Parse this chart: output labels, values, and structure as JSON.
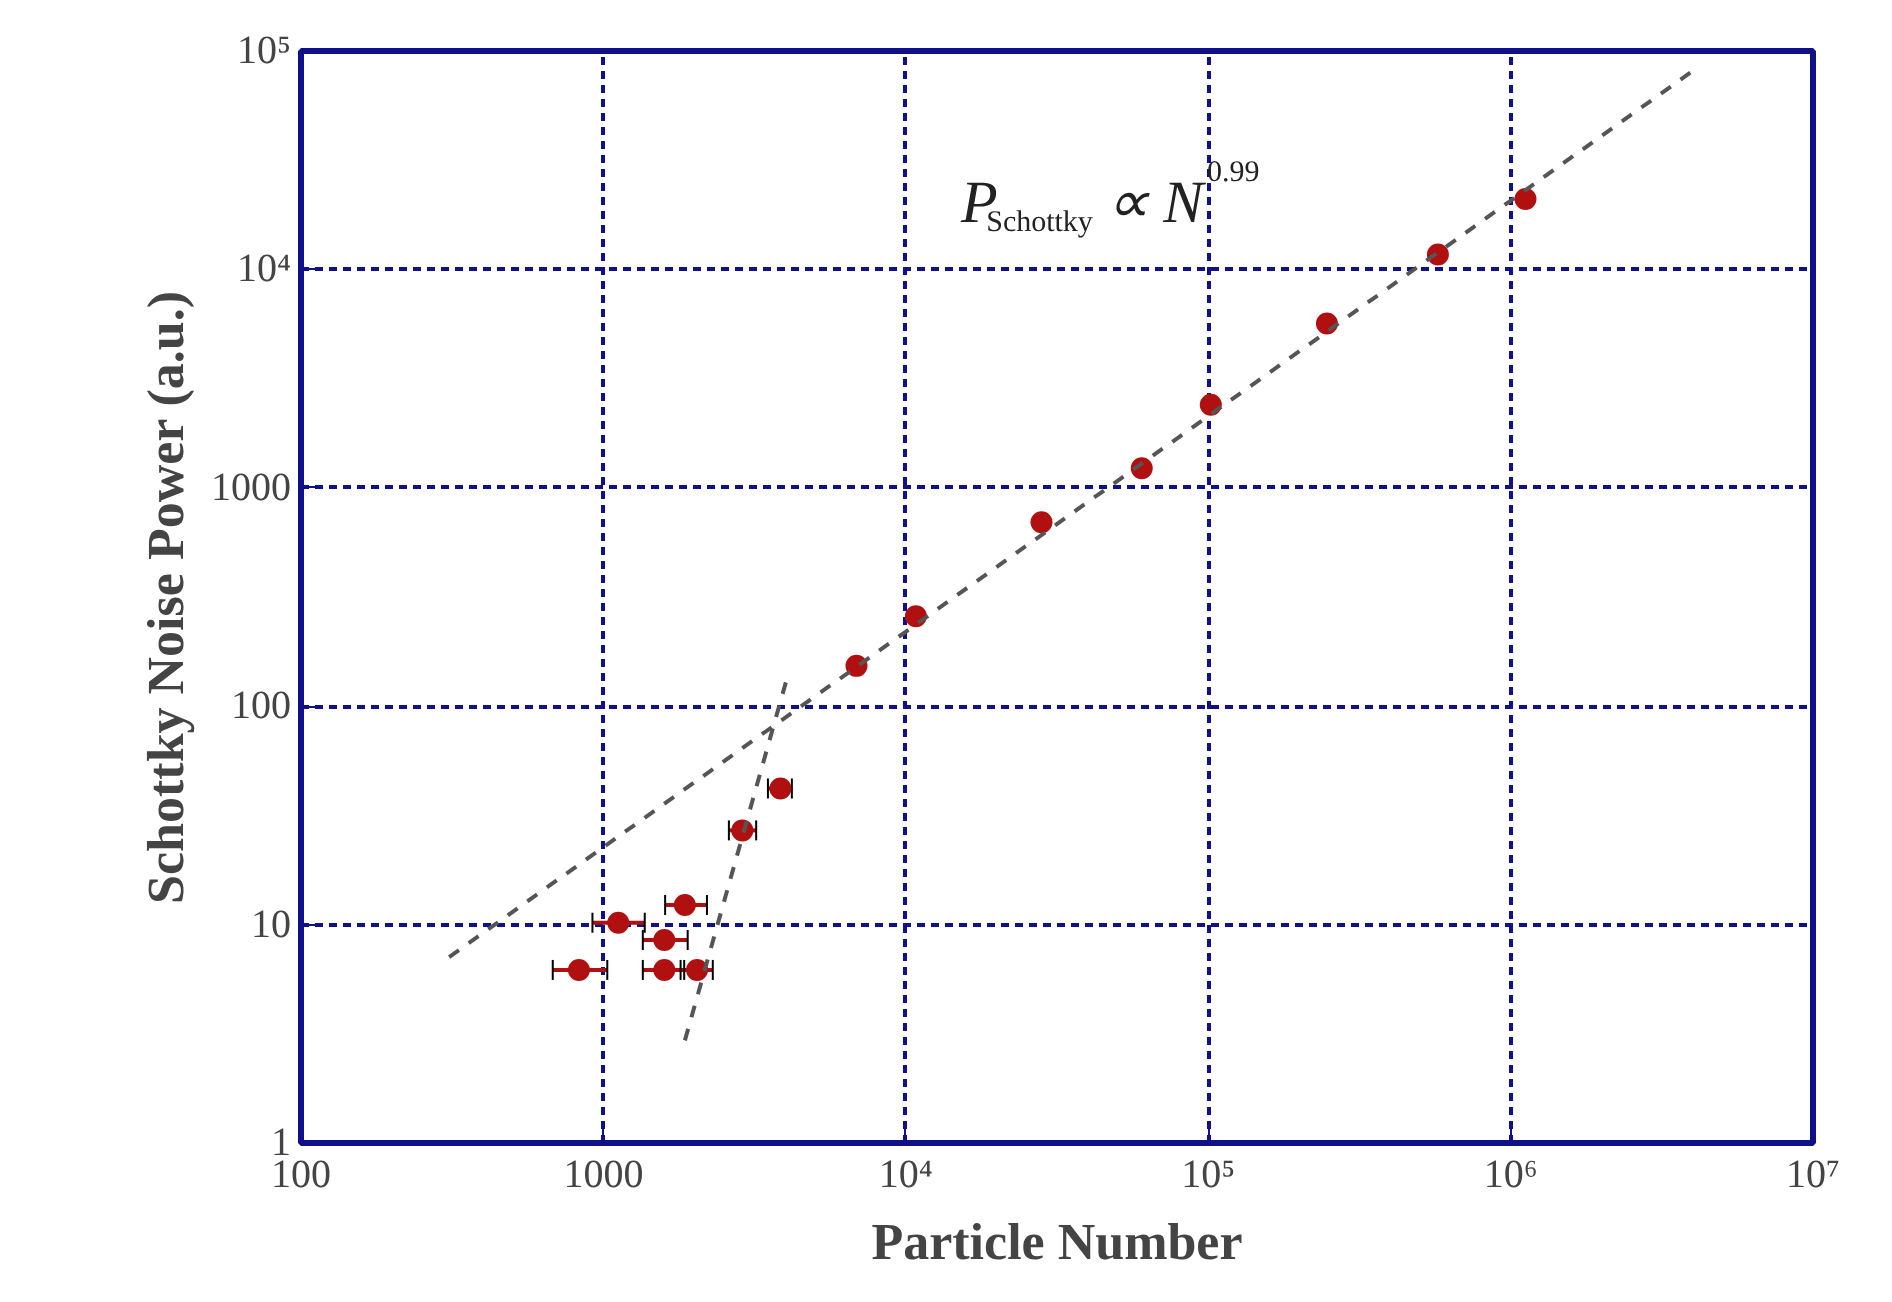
{
  "chart_data": {
    "type": "scatter",
    "xlabel": "Particle Number",
    "ylabel": "Schottky Noise Power (a.u.)",
    "log": "xy",
    "grid": true,
    "marker": "circle",
    "xlim": [
      100,
      10000000
    ],
    "ylim": [
      1,
      100000
    ],
    "xticks": [
      100,
      1000,
      {
        "value": 10000,
        "label": "10⁴"
      },
      {
        "value": 100000,
        "label": "10⁵"
      },
      {
        "value": 1000000,
        "label": "10⁶"
      },
      {
        "value": 10000000,
        "label": "10⁷"
      }
    ],
    "yticks": [
      1,
      10,
      100,
      1000,
      {
        "value": 10000,
        "label": "10⁴"
      },
      {
        "value": 100000,
        "label": "10⁵"
      }
    ],
    "annotations": [
      "P$_{Schottky}$ ∝ N$^{0.99}$"
    ],
    "series": [
      {
        "color": "#b01010",
        "x": [
          830,
          1120,
          1590,
          1590,
          2040,
          1860,
          2880,
          3850,
          6870,
          10800,
          28100,
          60300,
          102000,
          247000,
          575000,
          1120000
        ],
        "values": [
          6.2,
          10.2,
          8.5,
          6.2,
          6.2,
          12.3,
          27,
          42,
          153,
          258,
          695,
          1230,
          2400,
          5650,
          11700,
          21000
        ],
        "xerrors": [
          [
            680,
            1030
          ],
          [
            920,
            1370
          ],
          [
            1350,
            1900
          ],
          [
            1350,
            1850
          ],
          [
            1800,
            2300
          ],
          [
            1600,
            2200
          ],
          [
            2600,
            3200
          ],
          [
            3500,
            4200
          ],
          null,
          null,
          null,
          null,
          null,
          null,
          null,
          null
        ]
      },
      {
        "type": "line",
        "color": "#555555",
        "line_style": "dashed",
        "marker": "none",
        "x": [
          309,
          4000000
        ],
        "values": [
          7.1,
          81000
        ]
      },
      {
        "type": "line",
        "color": "#555555",
        "line_style": "dashed",
        "marker": "none",
        "x": [
          1860,
          4070
        ],
        "values": [
          2.95,
          138
        ]
      }
    ]
  }
}
